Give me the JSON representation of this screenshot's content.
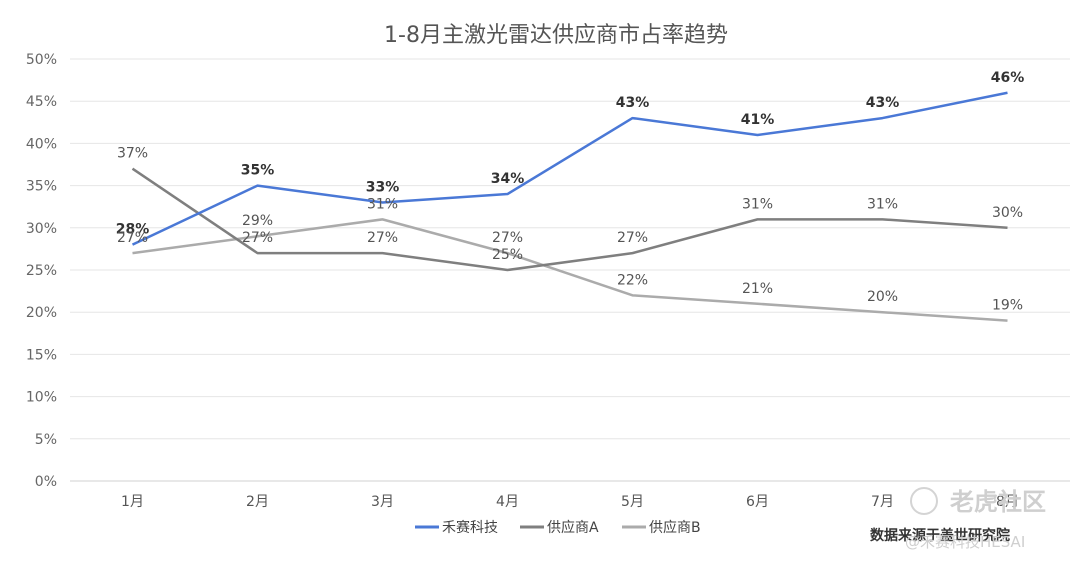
{
  "chart_data": {
    "type": "line",
    "title": "1-8月主激光雷达供应商市占率趋势",
    "categories": [
      "1月",
      "2月",
      "3月",
      "4月",
      "5月",
      "6月",
      "7月",
      "8月"
    ],
    "y_ticks": [
      "0%",
      "5%",
      "10%",
      "15%",
      "20%",
      "25%",
      "30%",
      "35%",
      "40%",
      "45%",
      "50%"
    ],
    "ylim": [
      0,
      50
    ],
    "grid": "horizontal",
    "legend_position": "bottom",
    "series": [
      {
        "name": "禾赛科技",
        "color": "#4a78d6",
        "values": [
          28,
          35,
          33,
          34,
          43,
          41,
          43,
          46
        ],
        "labels": [
          "28%",
          "35%",
          "33%",
          "34%",
          "43%",
          "41%",
          "43%",
          "46%"
        ],
        "bold": true
      },
      {
        "name": "供应商A",
        "color": "#7f7f7f",
        "values": [
          37,
          27,
          27,
          25,
          27,
          31,
          31,
          30
        ],
        "labels": [
          "37%",
          "27%",
          "27%",
          "25%",
          "27%",
          "31%",
          "31%",
          "30%"
        ]
      },
      {
        "name": "供应商B",
        "color": "#ababab",
        "values": [
          27,
          29,
          31,
          27,
          22,
          21,
          20,
          19
        ],
        "labels": [
          "27%",
          "29%",
          "31%",
          "27%",
          "22%",
          "21%",
          "20%",
          "19%"
        ]
      }
    ]
  },
  "source_note": "数据来源于盖世研究院",
  "watermark": {
    "brand": "老虎社区",
    "handle": "@禾赛科技HESAI"
  }
}
